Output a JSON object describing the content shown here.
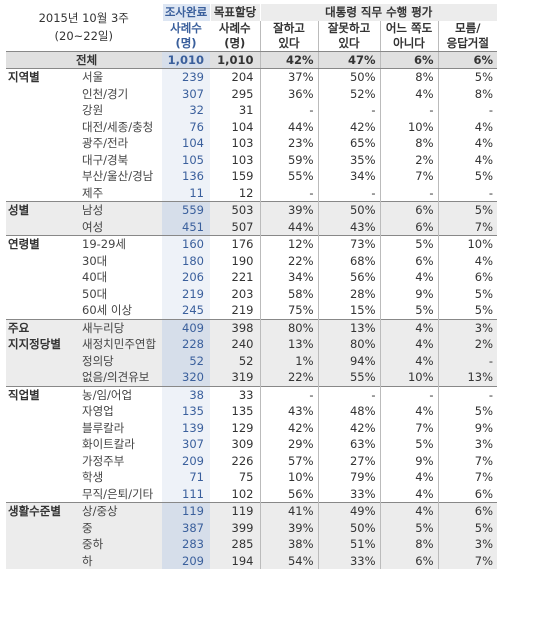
{
  "header": {
    "title_line1": "2015년 10월 3주",
    "title_line2": "(20~22일)",
    "completed": "조사완료",
    "target": "목표할당",
    "sample": "사례수",
    "unit": "(명)",
    "evaluation": "대통령 직무 수행 평가",
    "cols": [
      {
        "l1": "잘하고",
        "l2": "있다"
      },
      {
        "l1": "잘못하고",
        "l2": "있다"
      },
      {
        "l1": "어느 쪽도",
        "l2": "아니다"
      },
      {
        "l1": "모름/",
        "l2": "응답거절"
      }
    ]
  },
  "total": {
    "label": "전체",
    "completed": "1,010",
    "target": "1,010",
    "good": "42%",
    "bad": "47%",
    "neither": "6%",
    "unknown": "6%"
  },
  "groups": [
    {
      "name": "지역별",
      "shade": false,
      "rows": [
        [
          "서울",
          "239",
          "204",
          "37%",
          "50%",
          "8%",
          "5%"
        ],
        [
          "인천/경기",
          "307",
          "295",
          "36%",
          "52%",
          "4%",
          "8%"
        ],
        [
          "강원",
          "32",
          "31",
          "-",
          "-",
          "-",
          "-"
        ],
        [
          "대전/세종/충청",
          "76",
          "104",
          "44%",
          "42%",
          "10%",
          "4%"
        ],
        [
          "광주/전라",
          "104",
          "103",
          "23%",
          "65%",
          "8%",
          "4%"
        ],
        [
          "대구/경북",
          "105",
          "103",
          "59%",
          "35%",
          "2%",
          "4%"
        ],
        [
          "부산/울산/경남",
          "136",
          "159",
          "55%",
          "34%",
          "7%",
          "5%"
        ],
        [
          "제주",
          "11",
          "12",
          "-",
          "-",
          "-",
          "-"
        ]
      ]
    },
    {
      "name": "성별",
      "shade": true,
      "rows": [
        [
          "남성",
          "559",
          "503",
          "39%",
          "50%",
          "6%",
          "5%"
        ],
        [
          "여성",
          "451",
          "507",
          "44%",
          "43%",
          "6%",
          "7%"
        ]
      ]
    },
    {
      "name": "연령별",
      "shade": false,
      "rows": [
        [
          "19-29세",
          "160",
          "176",
          "12%",
          "73%",
          "5%",
          "10%"
        ],
        [
          "30대",
          "180",
          "190",
          "22%",
          "68%",
          "6%",
          "4%"
        ],
        [
          "40대",
          "206",
          "221",
          "34%",
          "56%",
          "4%",
          "6%"
        ],
        [
          "50대",
          "219",
          "203",
          "58%",
          "28%",
          "9%",
          "5%"
        ],
        [
          "60세 이상",
          "245",
          "219",
          "75%",
          "15%",
          "5%",
          "5%"
        ]
      ]
    },
    {
      "name": "주요",
      "name2": "지지정당별",
      "shade": true,
      "rows": [
        [
          "새누리당",
          "409",
          "398",
          "80%",
          "13%",
          "4%",
          "3%"
        ],
        [
          "새정치민주연합",
          "228",
          "240",
          "13%",
          "80%",
          "4%",
          "2%"
        ],
        [
          "정의당",
          "52",
          "52",
          "1%",
          "94%",
          "4%",
          "-"
        ],
        [
          "없음/의견유보",
          "320",
          "319",
          "22%",
          "55%",
          "10%",
          "13%"
        ]
      ]
    },
    {
      "name": "직업별",
      "shade": false,
      "rows": [
        [
          "농/임/어업",
          "38",
          "33",
          "-",
          "-",
          "-",
          "-"
        ],
        [
          "자영업",
          "135",
          "135",
          "43%",
          "48%",
          "4%",
          "5%"
        ],
        [
          "블루칼라",
          "139",
          "129",
          "42%",
          "42%",
          "7%",
          "9%"
        ],
        [
          "화이트칼라",
          "307",
          "309",
          "29%",
          "63%",
          "5%",
          "3%"
        ],
        [
          "가정주부",
          "209",
          "226",
          "57%",
          "27%",
          "9%",
          "7%"
        ],
        [
          "학생",
          "71",
          "75",
          "10%",
          "79%",
          "4%",
          "7%"
        ],
        [
          "무직/은퇴/기타",
          "111",
          "102",
          "56%",
          "33%",
          "4%",
          "6%"
        ]
      ]
    },
    {
      "name": "생활수준별",
      "shade": true,
      "rows": [
        [
          "상/중상",
          "119",
          "119",
          "41%",
          "49%",
          "4%",
          "6%"
        ],
        [
          "중",
          "387",
          "399",
          "39%",
          "50%",
          "5%",
          "5%"
        ],
        [
          "중하",
          "283",
          "285",
          "38%",
          "51%",
          "8%",
          "3%"
        ],
        [
          "하",
          "209",
          "194",
          "54%",
          "33%",
          "6%",
          "7%"
        ]
      ]
    }
  ]
}
